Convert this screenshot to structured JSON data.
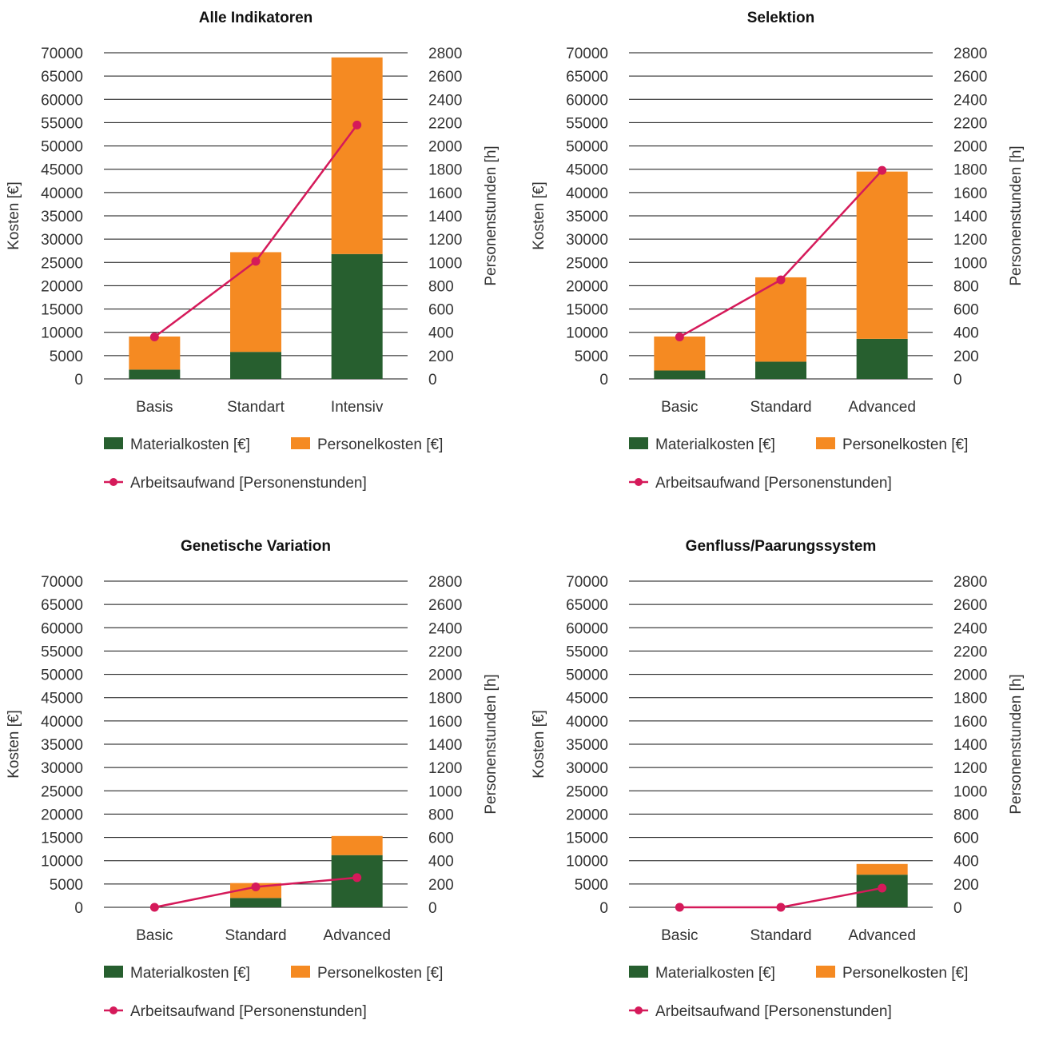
{
  "colors": {
    "material": "#275f2f",
    "personal": "#f58a22",
    "line": "#d51a5a",
    "grid": "#111111"
  },
  "legend": {
    "material": "Materialkosten [€]",
    "personal": "Personelkosten [€]",
    "line": "Arbeitsaufwand [Personenstunden]"
  },
  "chart_data": [
    {
      "type": "bar",
      "stacked": true,
      "title": "Alle Indikatoren",
      "categories": [
        "Basis",
        "Standart",
        "Intensiv"
      ],
      "series": [
        {
          "name": "Materialkosten [€]",
          "values": [
            2000,
            5800,
            26800
          ]
        },
        {
          "name": "Personelkosten [€]",
          "values": [
            7100,
            21400,
            42200
          ]
        }
      ],
      "line_series": {
        "name": "Arbeitsaufwand [Personenstunden]",
        "axis": "right",
        "values": [
          360,
          1010,
          2180
        ]
      },
      "ylabel": "Kosten [€]",
      "y2label": "Personenstunden [h]",
      "ylim": [
        0,
        70000
      ],
      "y2lim": [
        0,
        2800
      ],
      "yticks": [
        "0",
        "5000",
        "10000",
        "15000",
        "20000",
        "25000",
        "30000",
        "35000",
        "40000",
        "45000",
        "50000",
        "55000",
        "60000",
        "65000",
        "70000"
      ],
      "y2ticks": [
        "0",
        "200",
        "400",
        "600",
        "800",
        "1000",
        "1200",
        "1400",
        "1600",
        "1800",
        "2000",
        "2200",
        "2400",
        "2600",
        "2800"
      ],
      "grid": true,
      "legend_position": "bottom"
    },
    {
      "type": "bar",
      "stacked": true,
      "title": "Selektion",
      "categories": [
        "Basic",
        "Standard",
        "Advanced"
      ],
      "series": [
        {
          "name": "Materialkosten [€]",
          "values": [
            1800,
            3700,
            8600
          ]
        },
        {
          "name": "Personelkosten [€]",
          "values": [
            7300,
            18100,
            35900
          ]
        }
      ],
      "line_series": {
        "name": "Arbeitsaufwand [Personenstunden]",
        "axis": "right",
        "values": [
          360,
          850,
          1790
        ]
      },
      "ylabel": "Kosten [€]",
      "y2label": "Personenstunden [h]",
      "ylim": [
        0,
        70000
      ],
      "y2lim": [
        0,
        2800
      ],
      "yticks": [
        "0",
        "5000",
        "10000",
        "15000",
        "20000",
        "25000",
        "30000",
        "35000",
        "40000",
        "45000",
        "50000",
        "55000",
        "60000",
        "65000",
        "70000"
      ],
      "y2ticks": [
        "0",
        "200",
        "400",
        "600",
        "800",
        "1000",
        "1200",
        "1400",
        "1600",
        "1800",
        "2000",
        "2200",
        "2400",
        "2600",
        "2800"
      ],
      "grid": true,
      "legend_position": "bottom"
    },
    {
      "type": "bar",
      "stacked": true,
      "title": "Genetische Variation",
      "categories": [
        "Basic",
        "Standard",
        "Advanced"
      ],
      "series": [
        {
          "name": "Materialkosten [€]",
          "values": [
            0,
            2000,
            11200
          ]
        },
        {
          "name": "Personelkosten [€]",
          "values": [
            0,
            3200,
            4100
          ]
        }
      ],
      "line_series": {
        "name": "Arbeitsaufwand [Personenstunden]",
        "axis": "right",
        "values": [
          0,
          175,
          255
        ]
      },
      "ylabel": "Kosten [€]",
      "y2label": "Personenstunden [h]",
      "ylim": [
        0,
        70000
      ],
      "y2lim": [
        0,
        2800
      ],
      "yticks": [
        "0",
        "5000",
        "10000",
        "15000",
        "20000",
        "25000",
        "30000",
        "35000",
        "40000",
        "45000",
        "50000",
        "55000",
        "60000",
        "65000",
        "70000"
      ],
      "y2ticks": [
        "0",
        "200",
        "400",
        "600",
        "800",
        "1000",
        "1200",
        "1400",
        "1600",
        "1800",
        "2000",
        "2200",
        "2400",
        "2600",
        "2800"
      ],
      "grid": true,
      "legend_position": "bottom"
    },
    {
      "type": "bar",
      "stacked": true,
      "title": "Genfluss/Paarungssystem",
      "categories": [
        "Basic",
        "Standard",
        "Advanced"
      ],
      "series": [
        {
          "name": "Materialkosten [€]",
          "values": [
            0,
            0,
            7000
          ]
        },
        {
          "name": "Personelkosten [€]",
          "values": [
            0,
            0,
            2300
          ]
        }
      ],
      "line_series": {
        "name": "Arbeitsaufwand [Personenstunden]",
        "axis": "right",
        "values": [
          0,
          0,
          165
        ]
      },
      "ylabel": "Kosten [€]",
      "y2label": "Personenstunden [h]",
      "ylim": [
        0,
        70000
      ],
      "y2lim": [
        0,
        2800
      ],
      "yticks": [
        "0",
        "5000",
        "10000",
        "15000",
        "20000",
        "25000",
        "30000",
        "35000",
        "40000",
        "45000",
        "50000",
        "55000",
        "60000",
        "65000",
        "70000"
      ],
      "y2ticks": [
        "0",
        "200",
        "400",
        "600",
        "800",
        "1000",
        "1200",
        "1400",
        "1600",
        "1800",
        "2000",
        "2200",
        "2400",
        "2600",
        "2800"
      ],
      "grid": true,
      "legend_position": "bottom"
    }
  ]
}
